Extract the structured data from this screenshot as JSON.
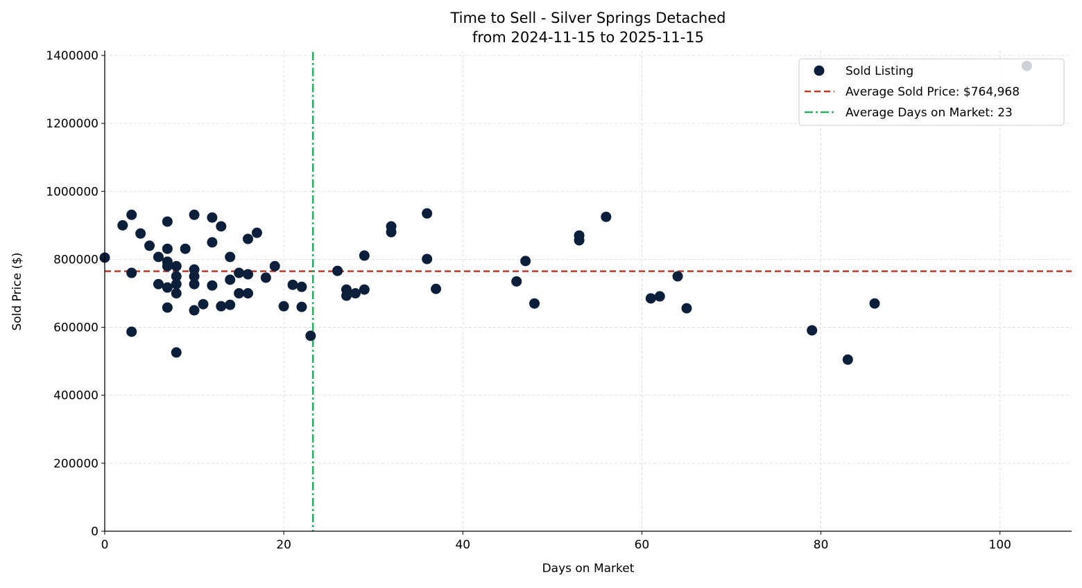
{
  "chart_data": {
    "type": "scatter",
    "title": "Time to Sell - Silver Springs Detached",
    "subtitle": "from 2024-11-15 to 2025-11-15",
    "xlabel": "Days on Market",
    "ylabel": "Sold Price ($)",
    "xlim": [
      0,
      108
    ],
    "ylim": [
      0,
      1400000
    ],
    "xticks": [
      0,
      20,
      40,
      60,
      80,
      100
    ],
    "yticks": [
      0,
      200000,
      400000,
      600000,
      800000,
      1000000,
      1200000,
      1400000
    ],
    "grid": true,
    "legend_position": "top-right",
    "colors": {
      "points": "#0b1f3a",
      "avg_price": "#c0392b",
      "avg_days": "#27ae60",
      "grid": "#d9d9d9"
    },
    "series": [
      {
        "name": "Sold Listing",
        "x": [
          0,
          2,
          3,
          3,
          3,
          4,
          5,
          6,
          6,
          7,
          7,
          7,
          7,
          7,
          7,
          8,
          8,
          8,
          8,
          8,
          9,
          10,
          10,
          10,
          10,
          10,
          11,
          12,
          12,
          12,
          13,
          13,
          14,
          14,
          14,
          15,
          15,
          16,
          16,
          16,
          17,
          18,
          19,
          20,
          21,
          22,
          22,
          23,
          26,
          27,
          27,
          28,
          29,
          29,
          32,
          32,
          36,
          36,
          37,
          46,
          47,
          48,
          53,
          53,
          56,
          61,
          62,
          64,
          65,
          79,
          83,
          86,
          103
        ],
        "y": [
          805000,
          900000,
          931000,
          760000,
          587000,
          876000,
          840000,
          807000,
          727000,
          911000,
          831000,
          793000,
          780000,
          717000,
          658000,
          780000,
          750000,
          727000,
          700000,
          526000,
          831000,
          931000,
          770000,
          750000,
          727000,
          650000,
          668000,
          923000,
          850000,
          723000,
          897000,
          662000,
          807000,
          740000,
          666000,
          760000,
          700000,
          860000,
          756000,
          700000,
          878000,
          746000,
          780000,
          662000,
          725000,
          719000,
          660000,
          575000,
          766000,
          711000,
          693000,
          700000,
          811000,
          711000,
          897000,
          880000,
          935000,
          801000,
          713000,
          735000,
          795000,
          670000,
          870000,
          856000,
          925000,
          685000,
          691000,
          750000,
          656000,
          591000,
          505000,
          670000,
          1369000
        ]
      }
    ],
    "avg_price": {
      "label": "Average Sold Price: $764,968",
      "value": 764968
    },
    "avg_days": {
      "label": "Average Days on Market: 23",
      "value": 23.26
    }
  }
}
